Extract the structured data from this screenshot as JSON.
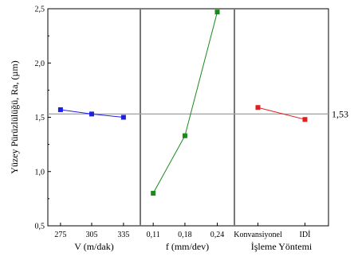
{
  "chart_data": {
    "type": "line",
    "ylabel": "Yüzey Pürüzlülüğü, Ra, (µm)",
    "ylim": [
      0.5,
      2.5
    ],
    "y_ticks": [
      "0,5",
      "1,0",
      "1,5",
      "2,0",
      "2,5"
    ],
    "y_tick_values": [
      0.5,
      1.0,
      1.5,
      2.0,
      2.5
    ],
    "reference_line": {
      "value": 1.53,
      "label": "1,53",
      "color": "#a0a0a0"
    },
    "panels": [
      {
        "xlabel": "V (m/dak)",
        "categories": [
          "275",
          "305",
          "335"
        ],
        "values": [
          1.57,
          1.53,
          1.5
        ],
        "color": "#1f1fe0"
      },
      {
        "xlabel": "f (mm/dev)",
        "categories": [
          "0,11",
          "0,18",
          "0,24"
        ],
        "values": [
          0.8,
          1.33,
          2.47
        ],
        "color": "#1a8a1a"
      },
      {
        "xlabel": "İşleme Yöntemi",
        "categories": [
          "Konvansiyonel",
          "IDİ"
        ],
        "values": [
          1.59,
          1.48
        ],
        "color": "#e01f1f"
      }
    ],
    "grid": false
  }
}
